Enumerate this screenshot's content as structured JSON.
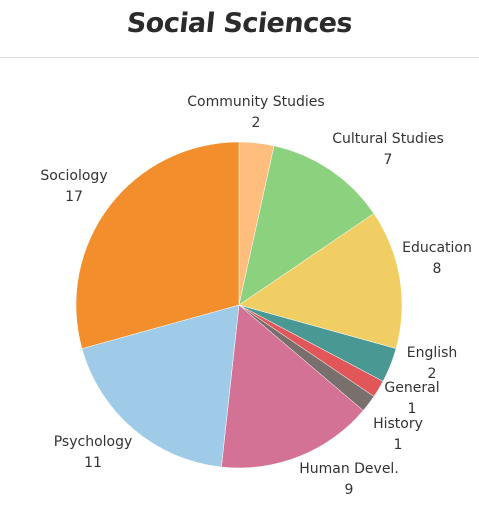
{
  "chart_data": {
    "type": "pie",
    "title": "Social Sciences",
    "slices": [
      {
        "label": "Community Studies",
        "value": 2,
        "color": "#ffbe7d"
      },
      {
        "label": "Cultural Studies",
        "value": 7,
        "color": "#8cd17d"
      },
      {
        "label": "Education",
        "value": 8,
        "color": "#f1ce63"
      },
      {
        "label": "English",
        "value": 2,
        "color": "#499894"
      },
      {
        "label": "General",
        "value": 1,
        "color": "#e15759"
      },
      {
        "label": "History",
        "value": 1,
        "color": "#79706e"
      },
      {
        "label": "Human Devel.",
        "value": 9,
        "color": "#d37295"
      },
      {
        "label": "Psychology",
        "value": 11,
        "color": "#a0cbe8"
      },
      {
        "label": "Sociology",
        "value": 17,
        "color": "#f28e2b"
      }
    ]
  }
}
